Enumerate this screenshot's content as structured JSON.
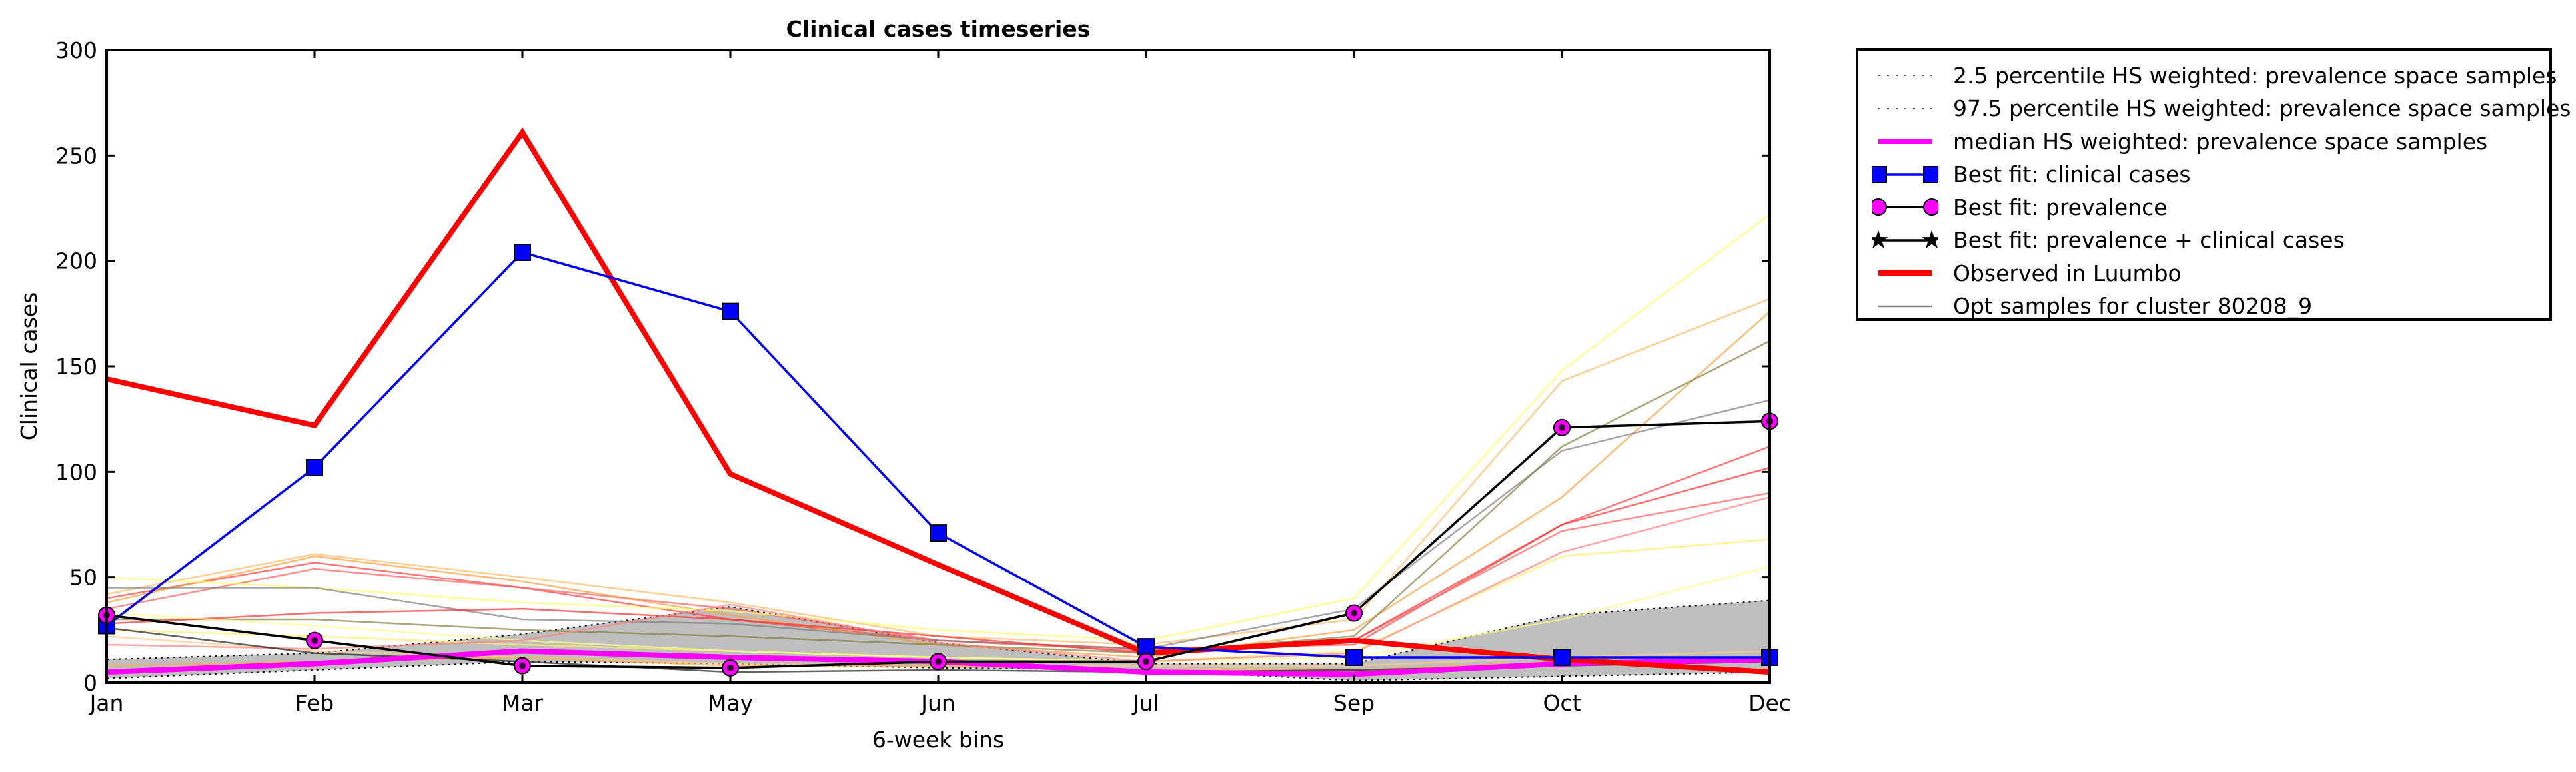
{
  "chart_data": {
    "type": "line",
    "title": "Clinical cases timeseries",
    "xlabel": "6-week bins",
    "ylabel": "Clinical cases",
    "categories": [
      "Jan",
      "Feb",
      "Mar",
      "May",
      "Jun",
      "Jul",
      "Sep",
      "Oct",
      "Dec"
    ],
    "ylim": [
      0,
      300
    ],
    "yticks": [
      0,
      50,
      100,
      150,
      200,
      250,
      300
    ],
    "grid": false,
    "legend_position": "outside-right",
    "band": {
      "lower": [
        2,
        6,
        10,
        9,
        7,
        6,
        1,
        3,
        5
      ],
      "upper": [
        11,
        14,
        23,
        36,
        19,
        9,
        9,
        32,
        39
      ],
      "fill": "#bfbfbf"
    },
    "median": {
      "values": [
        5,
        9,
        15,
        12,
        10,
        5,
        4,
        9,
        11
      ],
      "color": "#ff00ff"
    },
    "series": [
      {
        "name": "Best fit: clinical cases",
        "values": [
          27,
          102,
          204,
          176,
          71,
          17,
          12,
          12,
          12
        ],
        "color": "#0000ff"
      },
      {
        "name": "Best fit: prevalence",
        "values": [
          32,
          20,
          8,
          7,
          10,
          10,
          33,
          121,
          124
        ],
        "color": "#000000"
      },
      {
        "name": "Observed in Luumbo",
        "values": [
          144,
          122,
          261,
          99,
          56,
          14,
          20,
          11,
          5
        ],
        "color": "#ff0000"
      }
    ],
    "sample_lines": [
      {
        "values": [
          40,
          57,
          45,
          30,
          20,
          16,
          18,
          75,
          112
        ],
        "color": "#ff4040"
      },
      {
        "values": [
          35,
          54,
          45,
          35,
          20,
          15,
          20,
          72,
          90
        ],
        "color": "#ff6060"
      },
      {
        "values": [
          38,
          60,
          48,
          32,
          18,
          12,
          25,
          88,
          176
        ],
        "color": "#ffa040"
      },
      {
        "values": [
          42,
          61,
          50,
          38,
          22,
          18,
          30,
          143,
          182
        ],
        "color": "#ffbb66"
      },
      {
        "values": [
          50,
          45,
          38,
          34,
          25,
          20,
          40,
          148,
          222
        ],
        "color": "#ffff66"
      },
      {
        "values": [
          45,
          45,
          30,
          28,
          20,
          16,
          35,
          110,
          134
        ],
        "color": "#808080"
      },
      {
        "values": [
          30,
          30,
          25,
          22,
          18,
          14,
          22,
          112,
          162
        ],
        "color": "#808040"
      },
      {
        "values": [
          28,
          33,
          35,
          30,
          22,
          14,
          20,
          75,
          102
        ],
        "color": "#ff3030"
      },
      {
        "values": [
          25,
          22,
          18,
          15,
          12,
          10,
          15,
          60,
          68
        ],
        "color": "#ffee66"
      },
      {
        "values": [
          33,
          27,
          20,
          15,
          12,
          10,
          12,
          30,
          55
        ],
        "color": "#ffff88"
      },
      {
        "values": [
          22,
          15,
          12,
          9,
          8,
          8,
          8,
          12,
          15
        ],
        "color": "#ffcc88"
      },
      {
        "values": [
          8,
          10,
          12,
          8,
          8,
          6,
          6,
          10,
          10
        ],
        "color": "#ffaa44"
      },
      {
        "values": [
          18,
          16,
          20,
          37,
          19,
          10,
          14,
          62,
          88
        ],
        "color": "#ff8080"
      },
      {
        "values": [
          26,
          14,
          10,
          5,
          6,
          5,
          6,
          8,
          10
        ],
        "color": "#202020"
      }
    ]
  },
  "legend": [
    {
      "label": "2.5 percentile HS weighted: prevalence space samples",
      "style": "dotted",
      "color": "#000000"
    },
    {
      "label": "97.5 percentile HS weighted: prevalence space samples",
      "style": "dotted",
      "color": "#000000"
    },
    {
      "label": "median HS weighted: prevalence space samples",
      "style": "thick",
      "color": "#ff00ff"
    },
    {
      "label": "Best fit: clinical cases",
      "style": "line-square",
      "color": "#0000ff"
    },
    {
      "label": "Best fit: prevalence",
      "style": "line-circle",
      "color": "#ff00ff"
    },
    {
      "label": "Best fit: prevalence + clinical cases",
      "style": "line-star",
      "color": "#000000"
    },
    {
      "label": "Observed in Luumbo",
      "style": "thick",
      "color": "#ff0000"
    },
    {
      "label": "Opt samples for cluster 80208_9",
      "style": "thin",
      "color": "#808080"
    }
  ]
}
